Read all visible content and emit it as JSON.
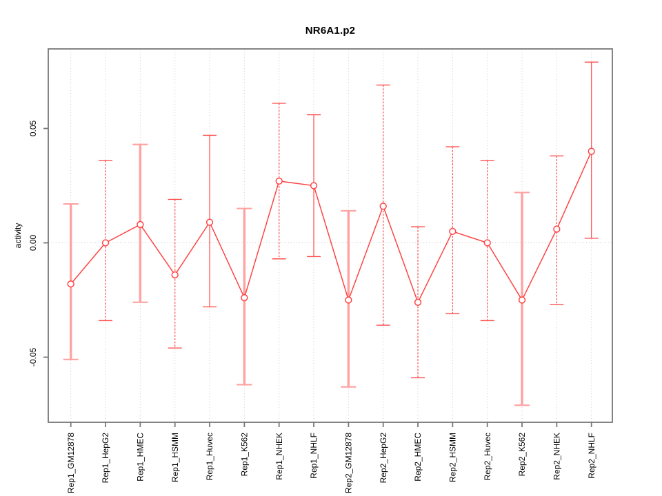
{
  "chart": {
    "title": "NR6A1.p2",
    "ylabel": "activity",
    "xlabel": ""
  },
  "chart_data": {
    "type": "line",
    "title": "NR6A1.p2",
    "xlabel": "",
    "ylabel": "activity",
    "legend": "none",
    "grid": "dotted vertical gridline per category, dotted horizontal line at y=0",
    "marker": "open-circle",
    "ylim": [
      -0.078,
      0.085
    ],
    "y_ticks": [
      -0.05,
      0,
      0.05
    ],
    "y_tick_labels": [
      "-0.05",
      "0.00",
      "0.05"
    ],
    "categories": [
      "Rep1_GM12878",
      "Rep1_HepG2",
      "Rep1_HMEC",
      "Rep1_HSMM",
      "Rep1_Huvec",
      "Rep1_K562",
      "Rep1_NHEK",
      "Rep1_NHLF",
      "Rep2_GM12878",
      "Rep2_HepG2",
      "Rep2_HMEC",
      "Rep2_HSMM",
      "Rep2_Huvec",
      "Rep2_K562",
      "Rep2_NHEK",
      "Rep2_NHLF"
    ],
    "series": [
      {
        "name": "activity",
        "values": [
          -0.018,
          0.0,
          0.008,
          -0.014,
          0.009,
          -0.024,
          0.027,
          0.025,
          -0.025,
          0.016,
          -0.026,
          0.005,
          0.0,
          -0.025,
          0.006,
          0.04
        ],
        "error_upper": [
          0.017,
          0.036,
          0.043,
          0.019,
          0.047,
          0.015,
          0.061,
          0.056,
          0.014,
          0.069,
          0.007,
          0.042,
          0.036,
          0.022,
          0.038,
          0.079
        ],
        "error_lower": [
          -0.051,
          -0.034,
          -0.026,
          -0.046,
          -0.028,
          -0.062,
          -0.007,
          -0.006,
          -0.063,
          -0.036,
          -0.059,
          -0.031,
          -0.034,
          -0.071,
          -0.027,
          0.002
        ],
        "bar_styles": [
          "wide",
          "dashed",
          "wide",
          "dashed",
          "thin",
          "wide",
          "dashed",
          "thin",
          "wide",
          "dashed",
          "dashed",
          "dashed",
          "dashed",
          "wide",
          "dashed",
          "thin"
        ]
      }
    ],
    "colors": {
      "line": "#ff4343",
      "marker_stroke": "#ff4343",
      "marker_fill": "#ffffff",
      "bar_wide": "#ffa2a2",
      "bar_thin": "#ff5555",
      "bar_cap": "#ff4f4f",
      "grid": "#d4d4d4",
      "axis_box": "#777777",
      "text": "#000000",
      "background": "#ffffff"
    }
  }
}
